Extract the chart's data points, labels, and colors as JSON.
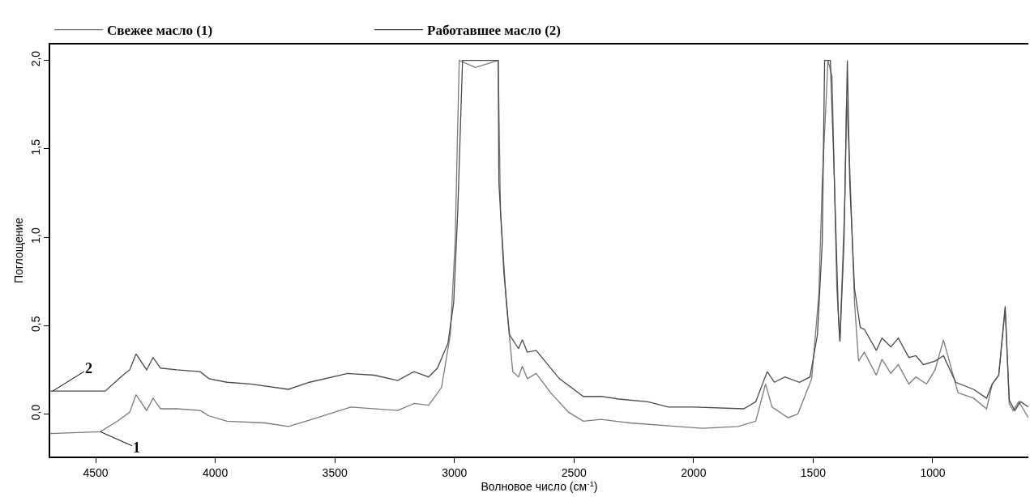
{
  "chart_data": {
    "type": "line",
    "xlabel": "Волновое число (см$^{-1}$)",
    "ylabel": "Поглощение",
    "xlim": [
      4690,
      600
    ],
    "ylim": [
      -0.24,
      2.09
    ],
    "xticks": [
      4500,
      4000,
      3500,
      3000,
      2500,
      2000,
      1500,
      1000
    ],
    "yticks": [
      {
        "value": 0,
        "label": "0,0"
      },
      {
        "value": 0.5,
        "label": "0,5"
      },
      {
        "value": 1,
        "label": "1,0"
      },
      {
        "value": 1.5,
        "label": "1,5"
      },
      {
        "value": 2,
        "label": "2,0"
      }
    ],
    "legend": "top",
    "marker": "none",
    "line_style": "solid",
    "annotations": [
      {
        "text": "1",
        "x": 4480,
        "y": -0.1
      },
      {
        "text": "2",
        "x": 4680,
        "y": 0.13
      }
    ],
    "series": [
      {
        "name": "Свежее масло (1)",
        "color": "#7a7a7a",
        "x": [
          4690,
          4480,
          4409,
          4358,
          4331,
          4287,
          4260,
          4229,
          4161,
          4063,
          4026,
          3951,
          3792,
          3694,
          3596,
          3433,
          3237,
          3169,
          3108,
          3054,
          3017,
          2997,
          2980,
          2912,
          2817,
          2807,
          2783,
          2756,
          2732,
          2716,
          2695,
          2658,
          2597,
          2522,
          2461,
          2387,
          2265,
          2068,
          1962,
          1813,
          1740,
          1699,
          1672,
          1605,
          1564,
          1506,
          1476,
          1462,
          1438,
          1421,
          1401,
          1388,
          1367,
          1360,
          1347,
          1327,
          1310,
          1286,
          1236,
          1212,
          1175,
          1144,
          1100,
          1070,
          1026,
          990,
          955,
          894,
          829,
          775,
          751,
          724,
          697,
          680,
          664,
          640,
          600
        ],
        "values": [
          -0.11,
          -0.1,
          -0.04,
          0.01,
          0.11,
          0.02,
          0.09,
          0.03,
          0.03,
          0.02,
          -0.01,
          -0.04,
          -0.05,
          -0.07,
          -0.03,
          0.04,
          0.02,
          0.06,
          0.05,
          0.15,
          0.45,
          0.97,
          2.0,
          1.96,
          2.0,
          1.14,
          0.63,
          0.24,
          0.21,
          0.27,
          0.2,
          0.23,
          0.12,
          0.01,
          -0.04,
          -0.03,
          -0.05,
          -0.07,
          -0.08,
          -0.07,
          -0.04,
          0.17,
          0.04,
          -0.02,
          0.0,
          0.2,
          0.68,
          1.31,
          2.0,
          1.91,
          0.71,
          0.41,
          1.23,
          1.78,
          1.4,
          0.63,
          0.3,
          0.35,
          0.22,
          0.31,
          0.23,
          0.28,
          0.17,
          0.21,
          0.17,
          0.25,
          0.42,
          0.12,
          0.09,
          0.03,
          0.17,
          0.22,
          0.59,
          0.06,
          0.02,
          0.07,
          -0.02
        ]
      },
      {
        "name": "Работавшее масло (2)",
        "color": "#4a4a4a",
        "x": [
          4690,
          4460,
          4395,
          4358,
          4331,
          4287,
          4260,
          4229,
          4161,
          4063,
          4026,
          3951,
          3853,
          3694,
          3606,
          3447,
          3335,
          3237,
          3169,
          3108,
          3071,
          3027,
          3003,
          2986,
          2966,
          2817,
          2814,
          2793,
          2770,
          2732,
          2716,
          2695,
          2658,
          2610,
          2561,
          2461,
          2387,
          2313,
          2190,
          2106,
          2000,
          1790,
          1740,
          1692,
          1662,
          1618,
          1557,
          1513,
          1482,
          1462,
          1452,
          1428,
          1415,
          1394,
          1388,
          1371,
          1357,
          1347,
          1327,
          1303,
          1286,
          1236,
          1212,
          1175,
          1144,
          1100,
          1070,
          1039,
          990,
          955,
          904,
          829,
          775,
          751,
          724,
          697,
          680,
          657,
          633,
          600
        ],
        "values": [
          0.13,
          0.13,
          0.21,
          0.25,
          0.34,
          0.25,
          0.32,
          0.26,
          0.25,
          0.24,
          0.2,
          0.18,
          0.17,
          0.14,
          0.18,
          0.23,
          0.22,
          0.19,
          0.24,
          0.21,
          0.26,
          0.4,
          0.63,
          1.15,
          2.0,
          2.0,
          1.31,
          0.8,
          0.45,
          0.37,
          0.42,
          0.35,
          0.36,
          0.28,
          0.2,
          0.1,
          0.1,
          0.085,
          0.07,
          0.04,
          0.04,
          0.03,
          0.07,
          0.24,
          0.18,
          0.21,
          0.18,
          0.21,
          0.45,
          0.97,
          2.0,
          2.0,
          1.49,
          0.54,
          0.41,
          0.97,
          2.0,
          1.31,
          0.71,
          0.49,
          0.48,
          0.36,
          0.43,
          0.38,
          0.43,
          0.32,
          0.33,
          0.28,
          0.3,
          0.33,
          0.18,
          0.14,
          0.09,
          0.17,
          0.22,
          0.61,
          0.08,
          0.02,
          0.07,
          0.04
        ]
      }
    ]
  }
}
